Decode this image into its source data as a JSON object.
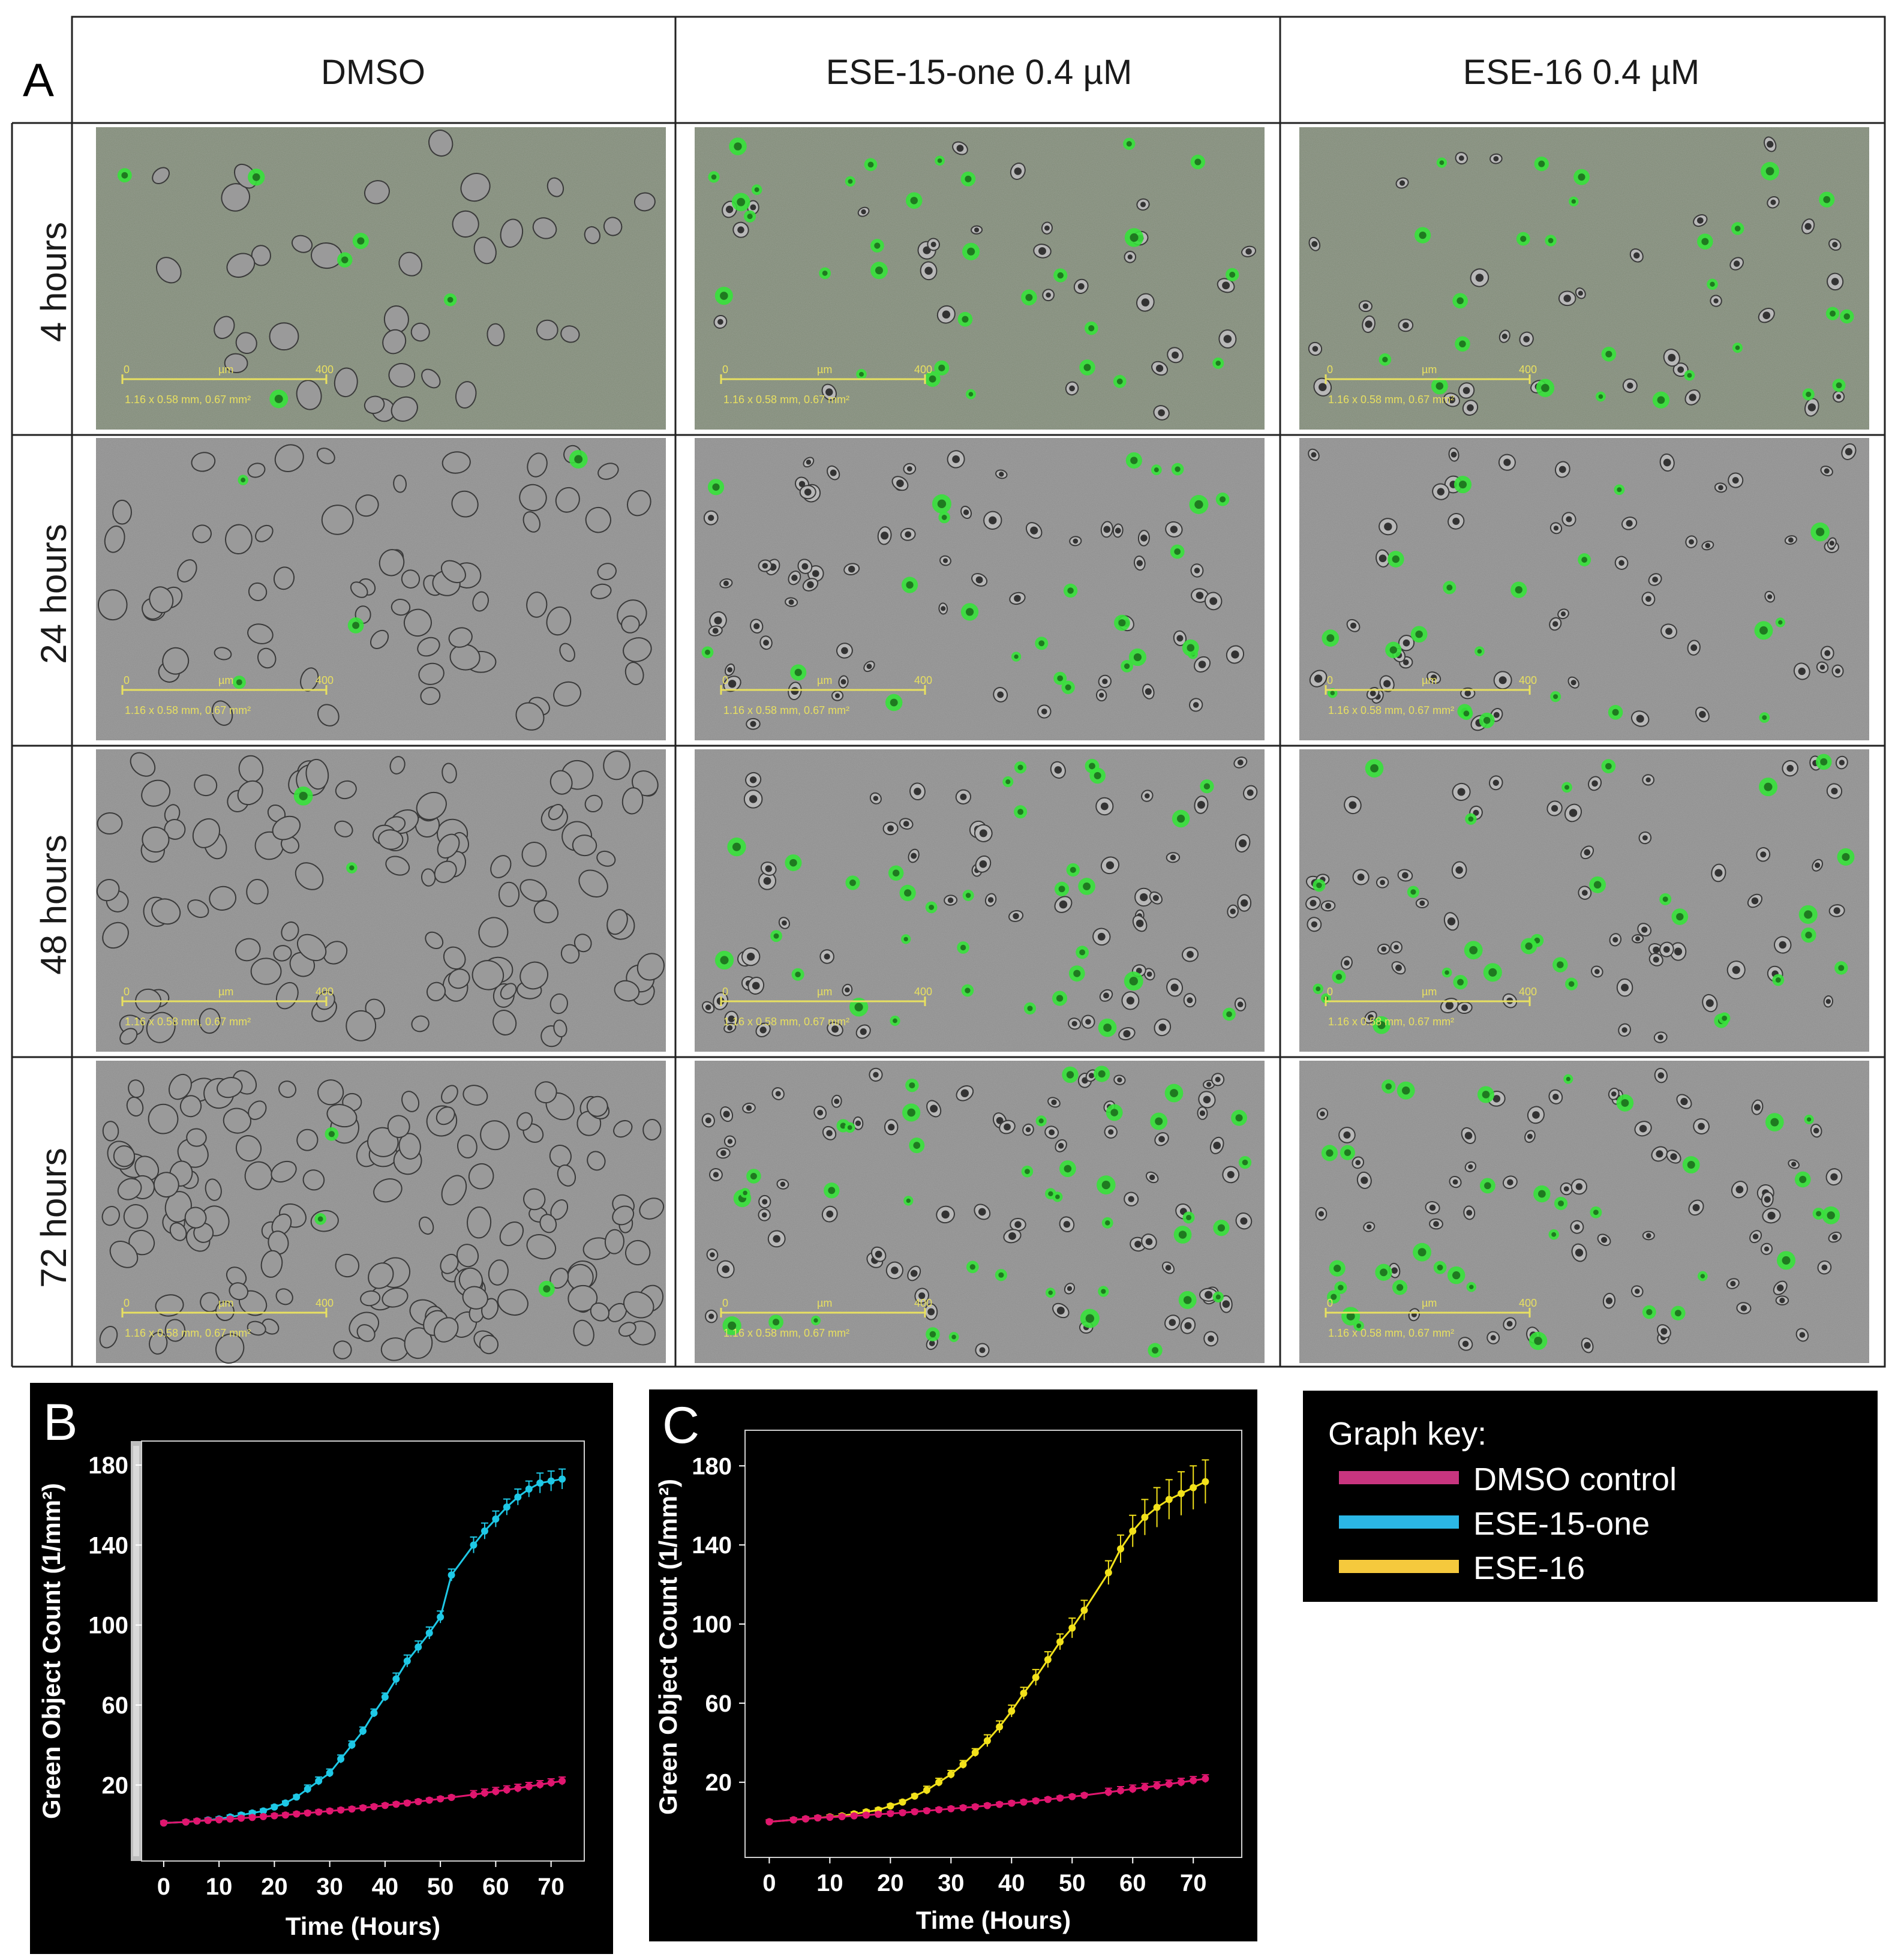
{
  "panel_a": {
    "letter": "A",
    "columns": [
      "DMSO",
      "ESE-15-one 0.4 µM",
      "ESE-16 0.4 µM"
    ],
    "rows": [
      "4 hours",
      "24 hours",
      "48 hours",
      "72 hours"
    ],
    "scale_bar": {
      "start": "0",
      "unit": "µm",
      "end": "400",
      "caption": "1.16 x 0.58 mm, 0.67 mm²"
    }
  },
  "colors": {
    "dmso": "#e0166f",
    "ese15": "#1ec8e6",
    "ese16": "#f2e11a",
    "key_dmso": "#c8357f",
    "key_ese15": "#2bb7e6",
    "key_ese16": "#f5c93d",
    "cell_green": "#36e23a",
    "micro_bg": "#8d8d8d"
  },
  "legend": {
    "title": "Graph key:",
    "items": [
      "DMSO control",
      "ESE-15-one",
      "ESE-16"
    ]
  },
  "chart_data": [
    {
      "panel": "B",
      "type": "line",
      "title": "",
      "xlabel": "Time (Hours)",
      "ylabel": "Green Object Count (1/mm²)",
      "xlim": [
        -4,
        76
      ],
      "ylim": [
        -18,
        192
      ],
      "xticks": [
        "0",
        "10",
        "20",
        "30",
        "40",
        "50",
        "60",
        "70"
      ],
      "yticks": [
        "20",
        "60",
        "100",
        "140",
        "180"
      ],
      "x": [
        0,
        4,
        6,
        8,
        10,
        12,
        14,
        16,
        18,
        20,
        22,
        24,
        26,
        28,
        30,
        32,
        34,
        36,
        38,
        40,
        42,
        44,
        46,
        48,
        50,
        52,
        56,
        58,
        60,
        62,
        64,
        66,
        68,
        70,
        72
      ],
      "series": [
        {
          "name": "ESE-15-one",
          "values": [
            1,
            1.5,
            2,
            2.5,
            3,
            4,
            5,
            6,
            7,
            9,
            11,
            14,
            18,
            22,
            26,
            33,
            40,
            47,
            56,
            64,
            73,
            82,
            89,
            96,
            104,
            125,
            140,
            147,
            153,
            159,
            164,
            168,
            171,
            172,
            173
          ],
          "error": [
            1,
            1,
            1,
            1,
            1,
            1,
            1,
            1,
            1,
            1,
            1,
            1,
            2,
            2,
            2,
            2,
            2,
            2,
            2,
            2,
            3,
            3,
            3,
            3,
            3,
            3,
            4,
            4,
            4,
            4,
            4,
            4,
            5,
            5,
            5
          ]
        },
        {
          "name": "DMSO control",
          "values": [
            1,
            1.5,
            2,
            2.3,
            2.6,
            3,
            3.4,
            3.8,
            4.2,
            4.6,
            5,
            5.5,
            6,
            6.5,
            7,
            7.5,
            8,
            8.6,
            9.2,
            9.8,
            10.4,
            11,
            11.7,
            12.4,
            13.1,
            13.8,
            15.2,
            16,
            16.8,
            17.6,
            18.4,
            19.3,
            20.2,
            21.1,
            22
          ],
          "error": [
            1,
            1,
            1,
            1,
            1,
            1,
            1,
            1,
            1,
            1,
            1,
            1,
            1,
            1,
            1,
            1,
            1,
            1,
            1,
            1,
            1,
            1,
            1,
            1,
            1,
            1,
            2,
            2,
            2,
            2,
            2,
            2,
            2,
            2,
            2
          ]
        }
      ]
    },
    {
      "panel": "C",
      "type": "line",
      "title": "",
      "xlabel": "Time (Hours)",
      "ylabel": "Green Object Count (1/mm²)",
      "xlim": [
        -4,
        78
      ],
      "ylim": [
        -18,
        198
      ],
      "xticks": [
        "0",
        "10",
        "20",
        "30",
        "40",
        "50",
        "60",
        "70"
      ],
      "yticks": [
        "20",
        "60",
        "100",
        "140",
        "180"
      ],
      "x": [
        0,
        4,
        6,
        8,
        10,
        12,
        14,
        16,
        18,
        20,
        22,
        24,
        26,
        28,
        30,
        32,
        34,
        36,
        38,
        40,
        42,
        44,
        46,
        48,
        50,
        52,
        56,
        58,
        60,
        62,
        64,
        66,
        68,
        70,
        72
      ],
      "series": [
        {
          "name": "ESE-16",
          "values": [
            0,
            1,
            1.5,
            2,
            2.5,
            3,
            4,
            5,
            6,
            8,
            10,
            13,
            16,
            20,
            24,
            29,
            35,
            41,
            48,
            56,
            65,
            73,
            82,
            91,
            98,
            107,
            126,
            138,
            147,
            154,
            159,
            163,
            166,
            169,
            172
          ],
          "error": [
            1,
            1,
            1,
            1,
            1,
            1,
            1,
            1,
            1,
            1,
            1,
            1,
            2,
            2,
            2,
            2,
            2,
            3,
            3,
            3,
            3,
            4,
            4,
            4,
            5,
            5,
            6,
            7,
            8,
            9,
            10,
            10,
            11,
            11,
            11
          ]
        },
        {
          "name": "DMSO control",
          "values": [
            0,
            1,
            1.5,
            2,
            2.3,
            2.6,
            3,
            3.4,
            3.8,
            4.2,
            4.6,
            5.1,
            5.6,
            6.1,
            6.6,
            7.1,
            7.6,
            8.2,
            8.8,
            9.4,
            10,
            10.6,
            11.3,
            12,
            12.7,
            13.4,
            15,
            15.8,
            16.6,
            17.4,
            18.2,
            19.1,
            20,
            20.9,
            21.8
          ],
          "error": [
            1,
            1,
            1,
            1,
            1,
            1,
            1,
            1,
            1,
            1,
            1,
            1,
            1,
            1,
            1,
            1,
            1,
            1,
            1,
            1,
            1,
            1,
            1,
            1,
            1,
            1,
            2,
            2,
            2,
            2,
            2,
            2,
            2,
            2,
            2
          ]
        }
      ]
    }
  ]
}
